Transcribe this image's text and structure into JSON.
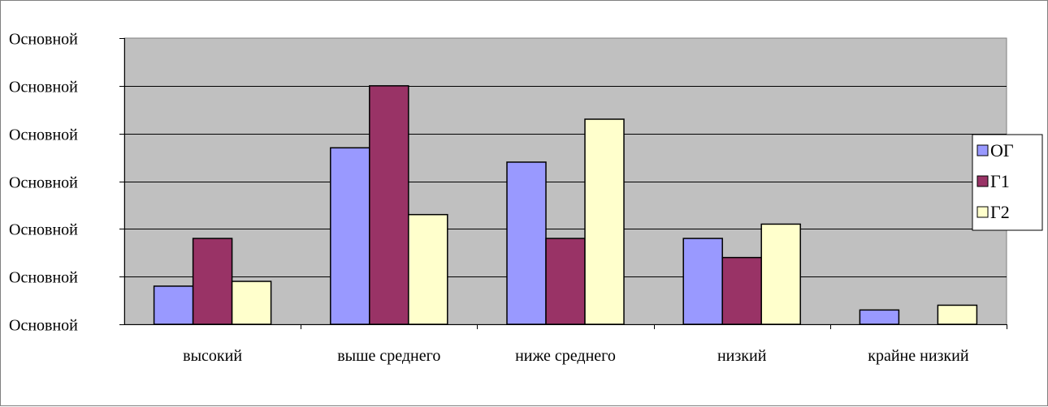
{
  "chart_data": {
    "type": "bar",
    "categories": [
      "высокий",
      "выше среднего",
      "ниже среднего",
      "низкий",
      "крайне низкий"
    ],
    "series": [
      {
        "name": "ОГ",
        "color": "#9999FF",
        "values": [
          8,
          37,
          34,
          18,
          3
        ]
      },
      {
        "name": "Г1",
        "color": "#993366",
        "values": [
          18,
          50,
          18,
          14,
          0
        ]
      },
      {
        "name": "Г2",
        "color": "#FFFFCC",
        "values": [
          9,
          23,
          43,
          21,
          4
        ]
      }
    ],
    "y_tick_labels": [
      "Основной",
      "Основной",
      "Основной",
      "Основной",
      "Основной",
      "Основной",
      "Основной"
    ],
    "ylim": [
      0,
      60
    ],
    "grid": true,
    "plot_background": "#C0C0C0",
    "legend_position": "right"
  }
}
